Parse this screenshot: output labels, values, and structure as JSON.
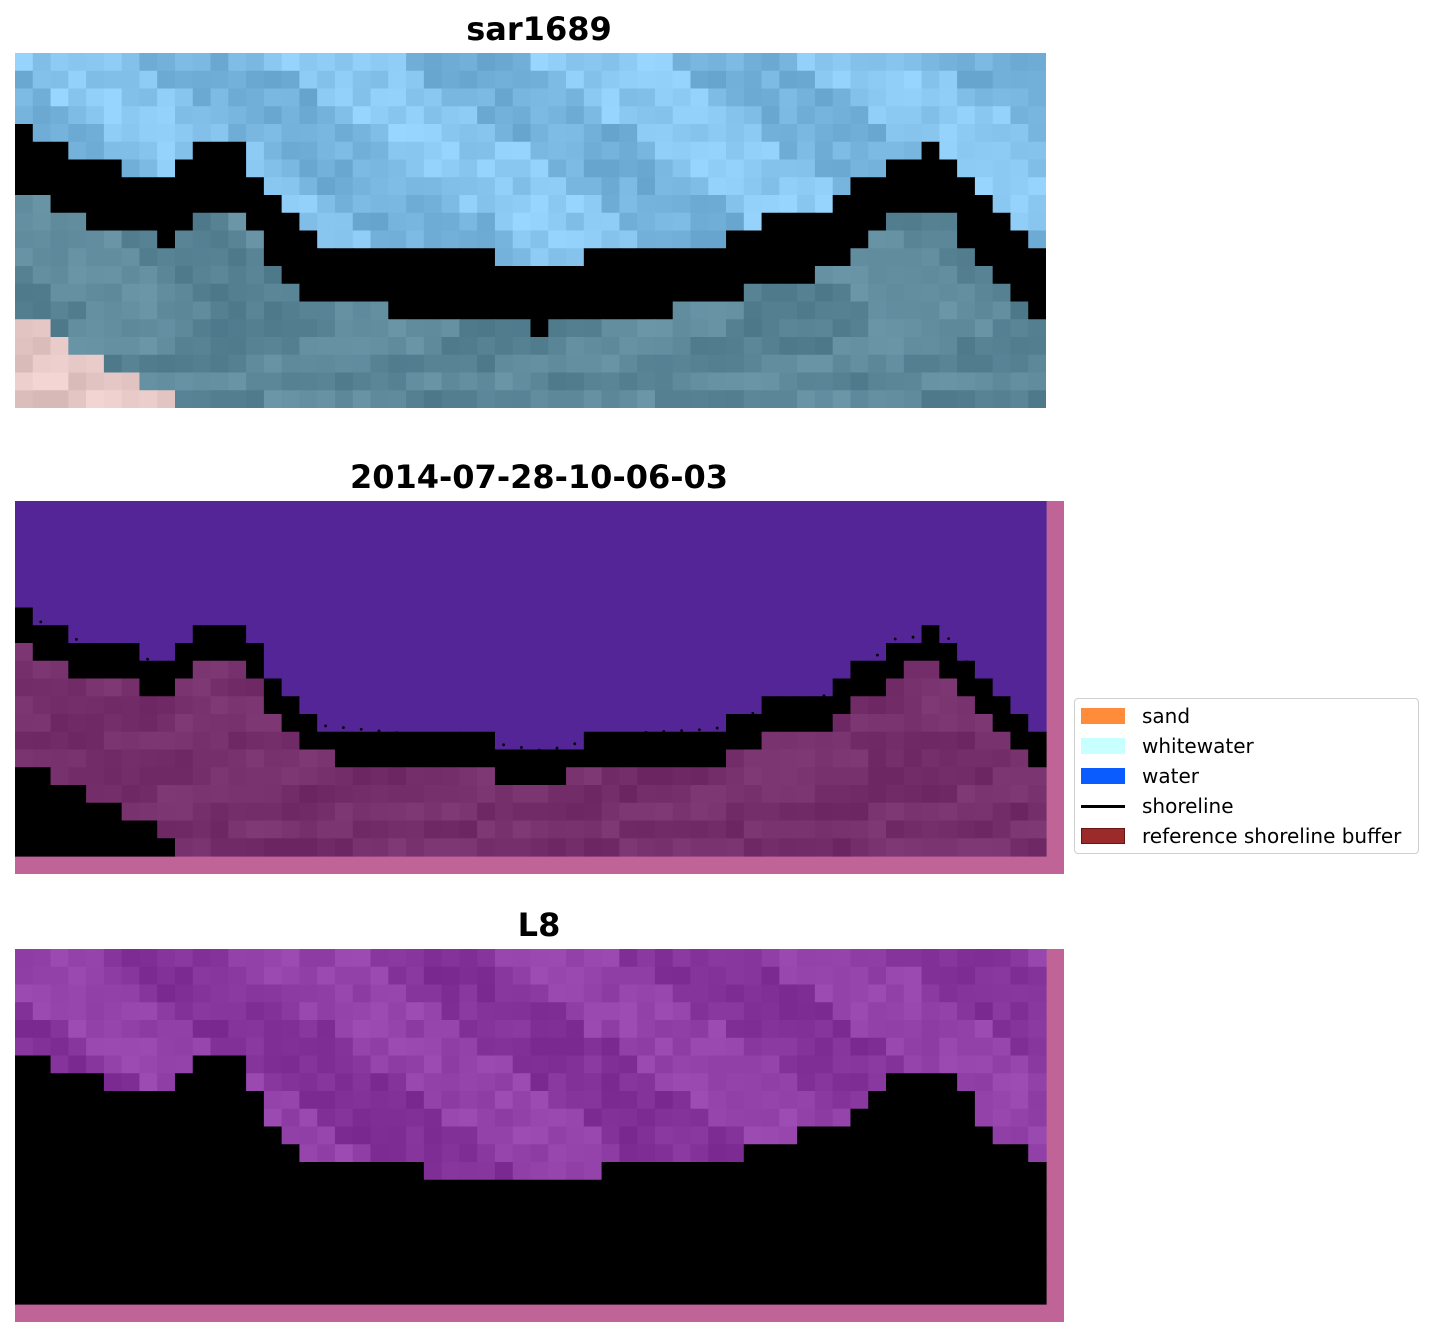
{
  "panels": [
    {
      "title": "sar1689"
    },
    {
      "title": "2014-07-28-10-06-03"
    },
    {
      "title": "L8"
    }
  ],
  "legend": {
    "items": [
      {
        "label": "sand",
        "color": "#ff8c3a",
        "kind": "patch"
      },
      {
        "label": "whitewater",
        "color": "#c8ffff",
        "kind": "patch"
      },
      {
        "label": "water",
        "color": "#0a5cff",
        "kind": "patch"
      },
      {
        "label": "shoreline",
        "color": "#000000",
        "kind": "line"
      },
      {
        "label": "reference shoreline buffer",
        "color": "#9b2a2a",
        "kind": "patch"
      }
    ]
  },
  "colors": {
    "rgb_sky": "#7fbde6",
    "rgb_water": "#5b8799",
    "rgb_foam": "#e8f6ec",
    "class_water": "#542597",
    "class_buffer": "#75306c",
    "class_border": "#c06498",
    "ndwi_top": "#8a3aa0",
    "ndwi_bottom": "#d0285c"
  }
}
